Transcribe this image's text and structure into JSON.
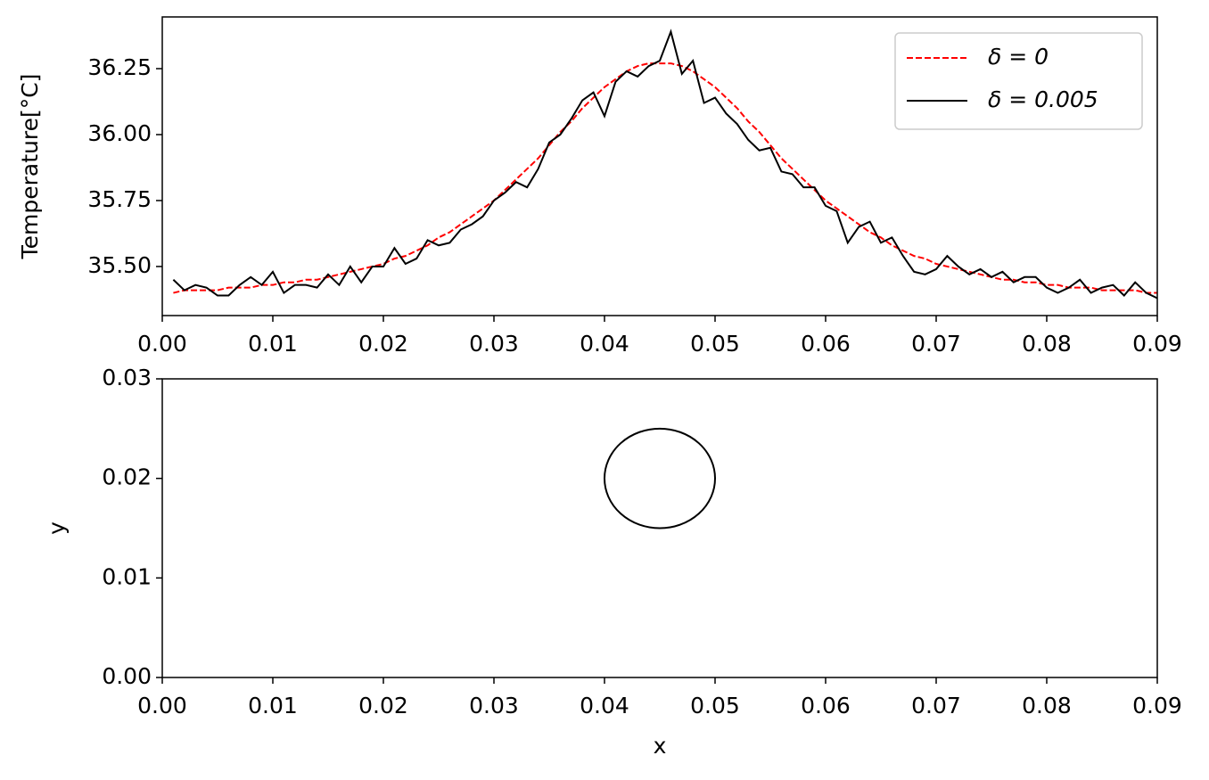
{
  "chart_data": [
    {
      "type": "line",
      "ylabel": "Temperature[°C]",
      "x": [
        0.001,
        0.002,
        0.003,
        0.004,
        0.005,
        0.006,
        0.007,
        0.008,
        0.009,
        0.01,
        0.011,
        0.012,
        0.013,
        0.014,
        0.015,
        0.016,
        0.017,
        0.018,
        0.019,
        0.02,
        0.021,
        0.022,
        0.023,
        0.024,
        0.025,
        0.026,
        0.027,
        0.028,
        0.029,
        0.03,
        0.031,
        0.032,
        0.033,
        0.034,
        0.035,
        0.036,
        0.037,
        0.038,
        0.039,
        0.04,
        0.041,
        0.042,
        0.043,
        0.044,
        0.045,
        0.046,
        0.047,
        0.048,
        0.049,
        0.05,
        0.051,
        0.052,
        0.053,
        0.054,
        0.055,
        0.056,
        0.057,
        0.058,
        0.059,
        0.06,
        0.061,
        0.062,
        0.063,
        0.064,
        0.065,
        0.066,
        0.067,
        0.068,
        0.069,
        0.07,
        0.071,
        0.072,
        0.073,
        0.074,
        0.075,
        0.076,
        0.077,
        0.078,
        0.079,
        0.08,
        0.081,
        0.082,
        0.083,
        0.084,
        0.085,
        0.086,
        0.087,
        0.088,
        0.089,
        0.09
      ],
      "series": [
        {
          "name": "δ = 0",
          "color": "#ff0000",
          "dashed": true,
          "values": [
            35.4,
            35.41,
            35.41,
            35.41,
            35.41,
            35.42,
            35.42,
            35.42,
            35.43,
            35.43,
            35.44,
            35.44,
            35.45,
            35.45,
            35.46,
            35.47,
            35.48,
            35.49,
            35.5,
            35.51,
            35.53,
            35.54,
            35.56,
            35.58,
            35.61,
            35.63,
            35.66,
            35.69,
            35.72,
            35.75,
            35.79,
            35.83,
            35.87,
            35.91,
            35.96,
            36.01,
            36.05,
            36.1,
            36.14,
            36.18,
            36.21,
            36.24,
            36.26,
            36.27,
            36.27,
            36.27,
            36.26,
            36.24,
            36.21,
            36.18,
            36.14,
            36.1,
            36.05,
            36.01,
            35.96,
            35.91,
            35.87,
            35.83,
            35.79,
            35.75,
            35.72,
            35.69,
            35.66,
            35.63,
            35.61,
            35.58,
            35.56,
            35.54,
            35.53,
            35.51,
            35.5,
            35.49,
            35.48,
            35.47,
            35.46,
            35.45,
            35.45,
            35.44,
            35.44,
            35.43,
            35.43,
            35.42,
            35.42,
            35.42,
            35.41,
            35.41,
            35.41,
            35.41,
            35.4,
            35.4
          ]
        },
        {
          "name": "δ = 0.005",
          "color": "#000000",
          "dashed": false,
          "values": [
            35.45,
            35.41,
            35.43,
            35.42,
            35.39,
            35.39,
            35.43,
            35.46,
            35.43,
            35.48,
            35.4,
            35.43,
            35.43,
            35.42,
            35.47,
            35.43,
            35.5,
            35.44,
            35.5,
            35.5,
            35.57,
            35.51,
            35.53,
            35.6,
            35.58,
            35.59,
            35.64,
            35.66,
            35.69,
            35.75,
            35.78,
            35.82,
            35.8,
            35.87,
            35.97,
            36.0,
            36.06,
            36.13,
            36.16,
            36.07,
            36.2,
            36.24,
            36.22,
            36.26,
            36.28,
            36.39,
            36.23,
            36.28,
            36.12,
            36.14,
            36.08,
            36.04,
            35.98,
            35.94,
            35.95,
            35.86,
            35.85,
            35.8,
            35.8,
            35.73,
            35.71,
            35.59,
            35.65,
            35.67,
            35.59,
            35.61,
            35.54,
            35.48,
            35.47,
            35.49,
            35.54,
            35.5,
            35.47,
            35.49,
            35.46,
            35.48,
            35.44,
            35.46,
            35.46,
            35.42,
            35.4,
            35.42,
            35.45,
            35.4,
            35.42,
            35.43,
            35.39,
            35.44,
            35.4,
            35.38
          ]
        }
      ],
      "xlim": [
        0,
        0.09
      ],
      "xticks": [
        {
          "value": 0,
          "label": "0.00"
        },
        0.01,
        0.02,
        0.03,
        0.04,
        0.05,
        0.06,
        0.07,
        0.08,
        0.09
      ],
      "ylim": [
        35.314,
        36.446
      ],
      "yticks": [
        {
          "value": 35.5,
          "label": "35.50"
        },
        35.75,
        {
          "value": 36,
          "label": "36.00"
        },
        36.25
      ],
      "legend": "upper right"
    },
    {
      "type": "circle",
      "xlabel": "x",
      "ylabel": "y",
      "center": [
        0.045,
        0.02
      ],
      "radius": 0.005,
      "color": "#000000",
      "xlim": [
        0,
        0.09
      ],
      "xticks": [
        {
          "value": 0,
          "label": "0.00"
        },
        0.01,
        0.02,
        0.03,
        0.04,
        0.05,
        0.06,
        0.07,
        0.08,
        0.09
      ],
      "ylim": [
        0,
        0.03
      ],
      "yticks": [
        {
          "value": 0,
          "label": "0.00"
        },
        0.01,
        0.02,
        0.03
      ]
    }
  ]
}
